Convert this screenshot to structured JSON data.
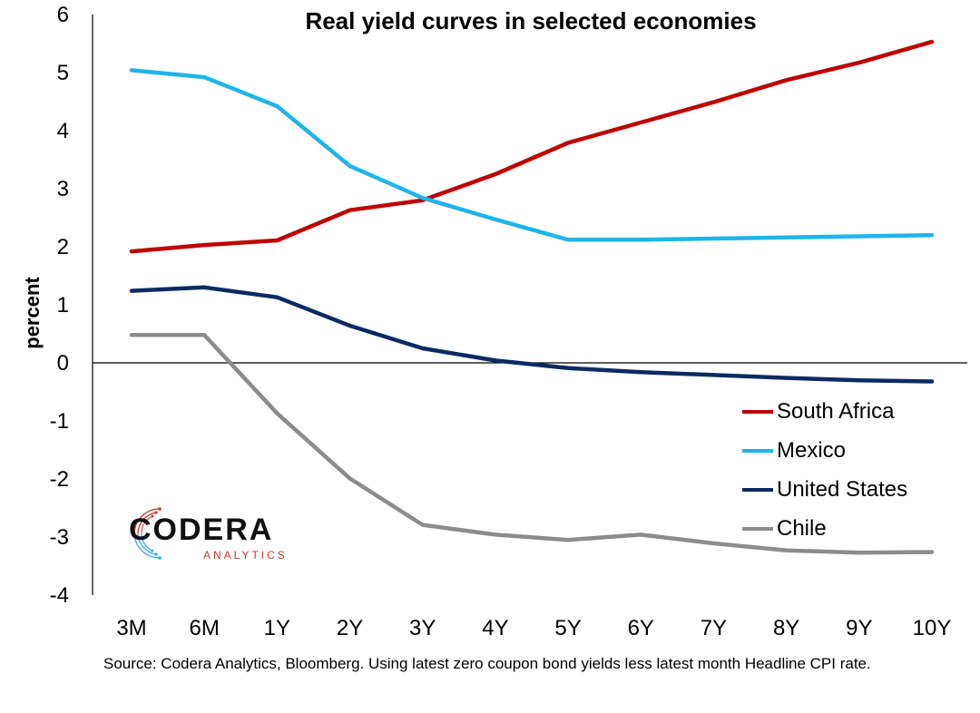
{
  "chart_data": {
    "type": "line",
    "title": "Real yield curves in selected economies",
    "xlabel": "",
    "ylabel": "percent",
    "ylim": [
      -4,
      6
    ],
    "yticks": [
      "6",
      "5",
      "4",
      "3",
      "2",
      "1",
      "0",
      "-1",
      "-2",
      "-3",
      "-4"
    ],
    "categories": [
      "3M",
      "6M",
      "1Y",
      "2Y",
      "3Y",
      "4Y",
      "5Y",
      "6Y",
      "7Y",
      "8Y",
      "9Y",
      "10Y"
    ],
    "series": [
      {
        "name": "South Africa",
        "color": "#C00000",
        "values": [
          1.92,
          2.03,
          2.11,
          2.63,
          2.8,
          3.25,
          3.79,
          4.14,
          4.49,
          4.87,
          5.17,
          5.53
        ]
      },
      {
        "name": "Mexico",
        "color": "#1FB4EC",
        "values": [
          5.04,
          4.92,
          4.42,
          3.39,
          2.84,
          2.47,
          2.12,
          2.12,
          2.14,
          2.16,
          2.18,
          2.2
        ]
      },
      {
        "name": "United States",
        "color": "#0B2A63",
        "values": [
          1.24,
          1.3,
          1.13,
          0.64,
          0.25,
          0.04,
          -0.09,
          -0.16,
          -0.21,
          -0.26,
          -0.3,
          -0.32
        ]
      },
      {
        "name": "Chile",
        "color": "#8C8C8C",
        "values": [
          0.48,
          0.48,
          -0.87,
          -1.99,
          -2.79,
          -2.96,
          -3.05,
          -2.96,
          -3.11,
          -3.23,
          -3.27,
          -3.26
        ]
      }
    ],
    "grid": false,
    "legend_position": "bottom-right"
  },
  "source_note": "Source: Codera Analytics, Bloomberg. Using latest zero coupon bond yields less latest month Headline CPI rate.",
  "logo": {
    "word": "CODERA",
    "sub": "ANALYTICS",
    "sub_color_left": "#C0392B",
    "sub_color_right": "#1FB4EC"
  }
}
